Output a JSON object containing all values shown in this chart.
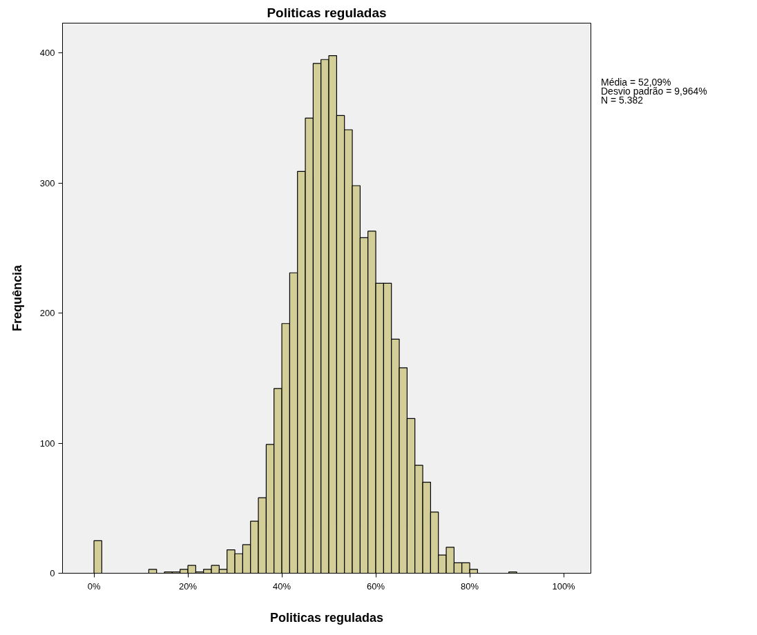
{
  "chart_data": {
    "type": "histogram",
    "title": "Politicas reguladas",
    "xlabel": "Politicas reguladas",
    "ylabel": "Frequência",
    "annotations": [
      "Média = 52,09%",
      "Desvio padrão = 9,964%",
      "N = 5.382"
    ],
    "bins": [
      0,
      1.67,
      3.33,
      5,
      6.67,
      8.33,
      10,
      11.67,
      13.33,
      15,
      16.67,
      18.33,
      20,
      21.67,
      23.33,
      25,
      26.67,
      28.33,
      30,
      31.67,
      33.33,
      35,
      36.67,
      38.33,
      40,
      41.67,
      43.33,
      45,
      46.67,
      48.33,
      50,
      51.67,
      53.33,
      55,
      56.67,
      58.33,
      60,
      61.67,
      63.33,
      65,
      66.67,
      68.33,
      70,
      71.67,
      73.33,
      75,
      76.67,
      78.33,
      80,
      81.67,
      83.33,
      85,
      86.67,
      88.33,
      90,
      91.67,
      93.33,
      95,
      96.67,
      98.33,
      100
    ],
    "values": [
      25,
      0,
      0,
      0,
      0,
      0,
      0,
      3,
      0,
      1,
      1,
      3,
      6,
      1,
      3,
      6,
      3,
      18,
      15,
      22,
      40,
      58,
      99,
      142,
      192,
      231,
      309,
      350,
      392,
      395,
      398,
      352,
      341,
      298,
      258,
      263,
      223,
      223,
      180,
      158,
      119,
      83,
      70,
      47,
      14,
      20,
      8,
      8,
      3,
      0,
      0,
      0,
      0,
      1,
      0,
      0,
      0,
      0,
      0,
      0
    ],
    "color": "#d3ce97",
    "xlim": [
      -6.7,
      105.8
    ],
    "ylim": [
      0,
      423
    ],
    "xticks": [
      {
        "value": 0,
        "label": "0%"
      },
      {
        "value": 20,
        "label": "20%"
      },
      {
        "value": 40,
        "label": "40%"
      },
      {
        "value": 60,
        "label": "60%"
      },
      {
        "value": 80,
        "label": "80%"
      },
      {
        "value": 100,
        "label": "100%"
      }
    ],
    "yticks": [
      0,
      100,
      200,
      300,
      400
    ],
    "grid": false
  }
}
